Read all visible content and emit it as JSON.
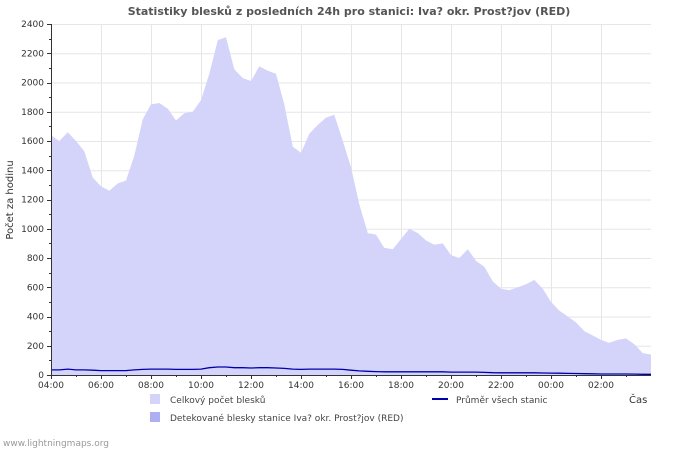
{
  "chart_data": {
    "type": "area",
    "title": "Statistiky blesků z posledních 24h pro stanici: Iva? okr. Prost?jov (RED)",
    "ylabel": "Počet za hodinu",
    "xlabel": "Čas",
    "ylim": [
      0,
      2400
    ],
    "y_ticks": [
      0,
      200,
      400,
      600,
      800,
      1000,
      1200,
      1400,
      1600,
      1800,
      2000,
      2200,
      2400
    ],
    "x_range_hours": [
      4,
      28
    ],
    "x_ticks": [
      {
        "label": "04:00",
        "hour": 4
      },
      {
        "label": "06:00",
        "hour": 6
      },
      {
        "label": "08:00",
        "hour": 8
      },
      {
        "label": "10:00",
        "hour": 10
      },
      {
        "label": "12:00",
        "hour": 12
      },
      {
        "label": "14:00",
        "hour": 14
      },
      {
        "label": "16:00",
        "hour": 16
      },
      {
        "label": "18:00",
        "hour": 18
      },
      {
        "label": "20:00",
        "hour": 20
      },
      {
        "label": "22:00",
        "hour": 22
      },
      {
        "label": "00:00",
        "hour": 24
      },
      {
        "label": "02:00",
        "hour": 26
      }
    ],
    "grid": true,
    "x_hours": [
      4.0,
      4.33,
      4.67,
      5.0,
      5.33,
      5.67,
      6.0,
      6.33,
      6.67,
      7.0,
      7.33,
      7.67,
      8.0,
      8.33,
      8.67,
      9.0,
      9.33,
      9.67,
      10.0,
      10.33,
      10.67,
      11.0,
      11.33,
      11.67,
      12.0,
      12.33,
      12.67,
      13.0,
      13.33,
      13.67,
      14.0,
      14.33,
      14.67,
      15.0,
      15.33,
      15.67,
      16.0,
      16.33,
      16.67,
      17.0,
      17.33,
      17.67,
      18.0,
      18.33,
      18.67,
      19.0,
      19.33,
      19.67,
      20.0,
      20.33,
      20.67,
      21.0,
      21.33,
      21.67,
      22.0,
      22.33,
      22.67,
      23.0,
      23.33,
      23.67,
      24.0,
      24.33,
      24.67,
      25.0,
      25.33,
      25.67,
      26.0,
      26.33,
      26.67,
      27.0,
      27.33,
      27.67,
      28.0
    ],
    "series": [
      {
        "name": "Celkový počet blesků",
        "color": "#d4d4fb",
        "style": "area",
        "values": [
          1640,
          1600,
          1660,
          1600,
          1530,
          1350,
          1290,
          1260,
          1310,
          1330,
          1500,
          1750,
          1850,
          1860,
          1820,
          1740,
          1790,
          1800,
          1880,
          2060,
          2290,
          2310,
          2090,
          2030,
          2010,
          2110,
          2080,
          2060,
          1850,
          1560,
          1520,
          1650,
          1710,
          1760,
          1780,
          1600,
          1420,
          1170,
          970,
          960,
          870,
          860,
          930,
          1000,
          970,
          920,
          890,
          900,
          820,
          800,
          860,
          780,
          740,
          640,
          590,
          580,
          600,
          620,
          650,
          590,
          500,
          440,
          400,
          360,
          300,
          270,
          240,
          220,
          240,
          250,
          210,
          150,
          140
        ]
      },
      {
        "name": "Detekované blesky stanice Iva? okr. Prost?jov (RED)",
        "color": "#aeaef2",
        "style": "area",
        "values": [
          0,
          0,
          0,
          0,
          0,
          0,
          0,
          0,
          0,
          0,
          0,
          0,
          0,
          0,
          0,
          0,
          0,
          0,
          0,
          0,
          0,
          0,
          0,
          0,
          0,
          0,
          0,
          0,
          0,
          0,
          0,
          0,
          0,
          0,
          0,
          0,
          0,
          0,
          0,
          0,
          0,
          0,
          0,
          0,
          0,
          0,
          0,
          0,
          0,
          0,
          0,
          0,
          0,
          0,
          0,
          0,
          0,
          0,
          0,
          0,
          0,
          0,
          0,
          0,
          0,
          0,
          0,
          0,
          0,
          0,
          0,
          0,
          0
        ]
      },
      {
        "name": "Průměr všech stanic",
        "color": "#0000aa",
        "style": "line",
        "values": [
          35,
          35,
          40,
          35,
          35,
          33,
          30,
          30,
          30,
          30,
          35,
          38,
          40,
          40,
          40,
          38,
          38,
          38,
          40,
          50,
          55,
          55,
          50,
          50,
          48,
          50,
          50,
          48,
          45,
          40,
          38,
          40,
          40,
          40,
          40,
          38,
          33,
          28,
          25,
          23,
          22,
          22,
          22,
          22,
          22,
          22,
          22,
          22,
          20,
          20,
          20,
          20,
          18,
          16,
          15,
          15,
          15,
          15,
          15,
          14,
          13,
          12,
          11,
          10,
          9,
          8,
          7,
          7,
          7,
          7,
          6,
          5,
          5
        ]
      }
    ]
  },
  "legend": [
    {
      "label": "Celkový počet blesků",
      "color": "#d4d4fb",
      "kind": "box"
    },
    {
      "label": "Průměr všech stanic",
      "color": "#0000aa",
      "kind": "line"
    },
    {
      "label": "Detekované blesky stanice Iva? okr. Prost?jov (RED)",
      "color": "#aeaef2",
      "kind": "box"
    }
  ],
  "footer": "www.lightningmaps.org"
}
